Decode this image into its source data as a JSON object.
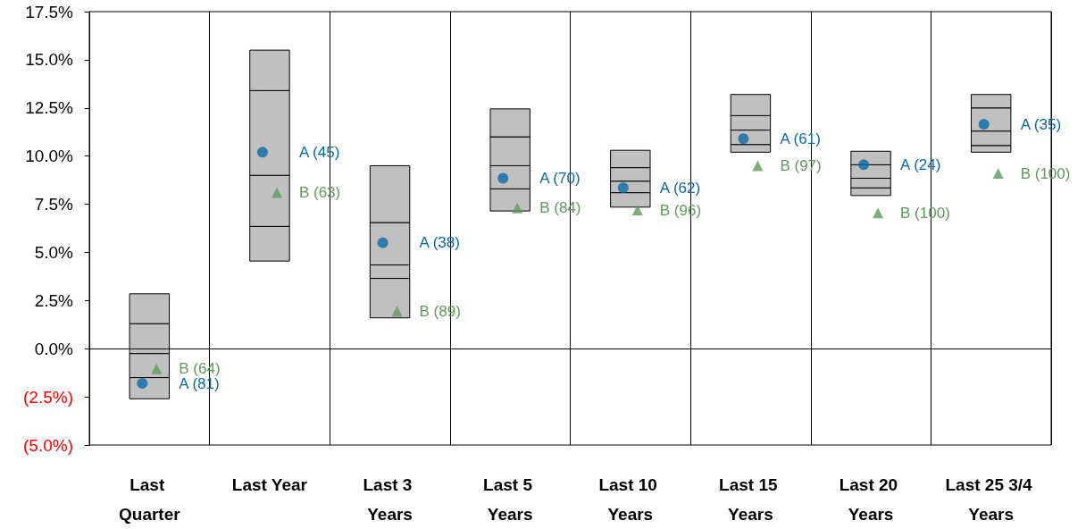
{
  "chart_data": {
    "type": "bar",
    "categories": [
      "Last Quarter",
      "Last Year",
      "Last 3 Years",
      "Last 5 Years",
      "Last 10 Years",
      "Last 15 Years",
      "Last 20 Years",
      "Last 25 3/4 Years"
    ],
    "series": [
      {
        "color": "#c0c0c0",
        "base": [
          -2.6,
          4.55,
          1.6,
          7.15,
          7.35,
          10.2,
          7.95,
          10.2
        ],
        "values": [
          1.1,
          1.8,
          2.05,
          1.15,
          0.75,
          0.4,
          0.4,
          0.35
        ]
      },
      {
        "color": "#c0c0c0",
        "base": [
          -1.5,
          6.35,
          3.65,
          8.3,
          8.1,
          10.6,
          8.35,
          10.55
        ],
        "values": [
          1.25,
          2.65,
          0.7,
          1.2,
          0.6,
          0.75,
          0.5,
          0.75
        ]
      },
      {
        "color": "#c0c0c0",
        "base": [
          -0.25,
          9.0,
          4.35,
          9.5,
          8.7,
          11.35,
          8.85,
          11.3
        ],
        "values": [
          1.55,
          4.4,
          2.2,
          1.5,
          0.7,
          0.75,
          0.7,
          1.2
        ]
      },
      {
        "color": "#c0c0c0",
        "base": [
          1.3,
          13.4,
          6.55,
          11.0,
          9.4,
          12.1,
          9.55,
          12.5
        ],
        "values": [
          1.55,
          2.1,
          2.95,
          1.45,
          0.9,
          1.1,
          0.7,
          0.7
        ]
      },
      {
        "type": "scatter",
        "marker": "circle",
        "color": "#0b69a3",
        "values": [
          -1.8,
          10.2,
          5.5,
          8.85,
          8.35,
          10.9,
          9.55,
          11.65
        ]
      },
      {
        "type": "scatter",
        "marker": "triangle",
        "color": "#5f9a5c",
        "values": [
          -1.05,
          8.1,
          1.95,
          7.3,
          7.2,
          9.5,
          7.05,
          9.1
        ]
      }
    ],
    "annotations": [
      "A (81)",
      "A (45)",
      "A (38)",
      "A (70)",
      "A (62)",
      "A (61)",
      "A (24)",
      "A (35)",
      "B (64)",
      "B (63)",
      "B (89)",
      "B (84)",
      "B (96)",
      "B (97)",
      "B (100)",
      "B (100)"
    ],
    "ylim": [
      -5,
      17.5
    ],
    "yticks": [
      {
        "value": -5,
        "label": "(5.0%)"
      },
      {
        "value": -2.5,
        "label": "(2.5%)"
      },
      {
        "value": 0,
        "label": "0.0%"
      },
      {
        "value": 2.5,
        "label": "2.5%"
      },
      {
        "value": 5,
        "label": "5.0%"
      },
      {
        "value": 7.5,
        "label": "7.5%"
      },
      {
        "value": 10,
        "label": "10.0%"
      },
      {
        "value": 12.5,
        "label": "12.5%"
      },
      {
        "value": 15,
        "label": "15.0%"
      },
      {
        "value": 17.5,
        "label": "17.5%"
      }
    ],
    "grid": "x",
    "ref_lines": [
      {
        "axis": "y",
        "value": 0,
        "color": "#000000"
      }
    ]
  }
}
